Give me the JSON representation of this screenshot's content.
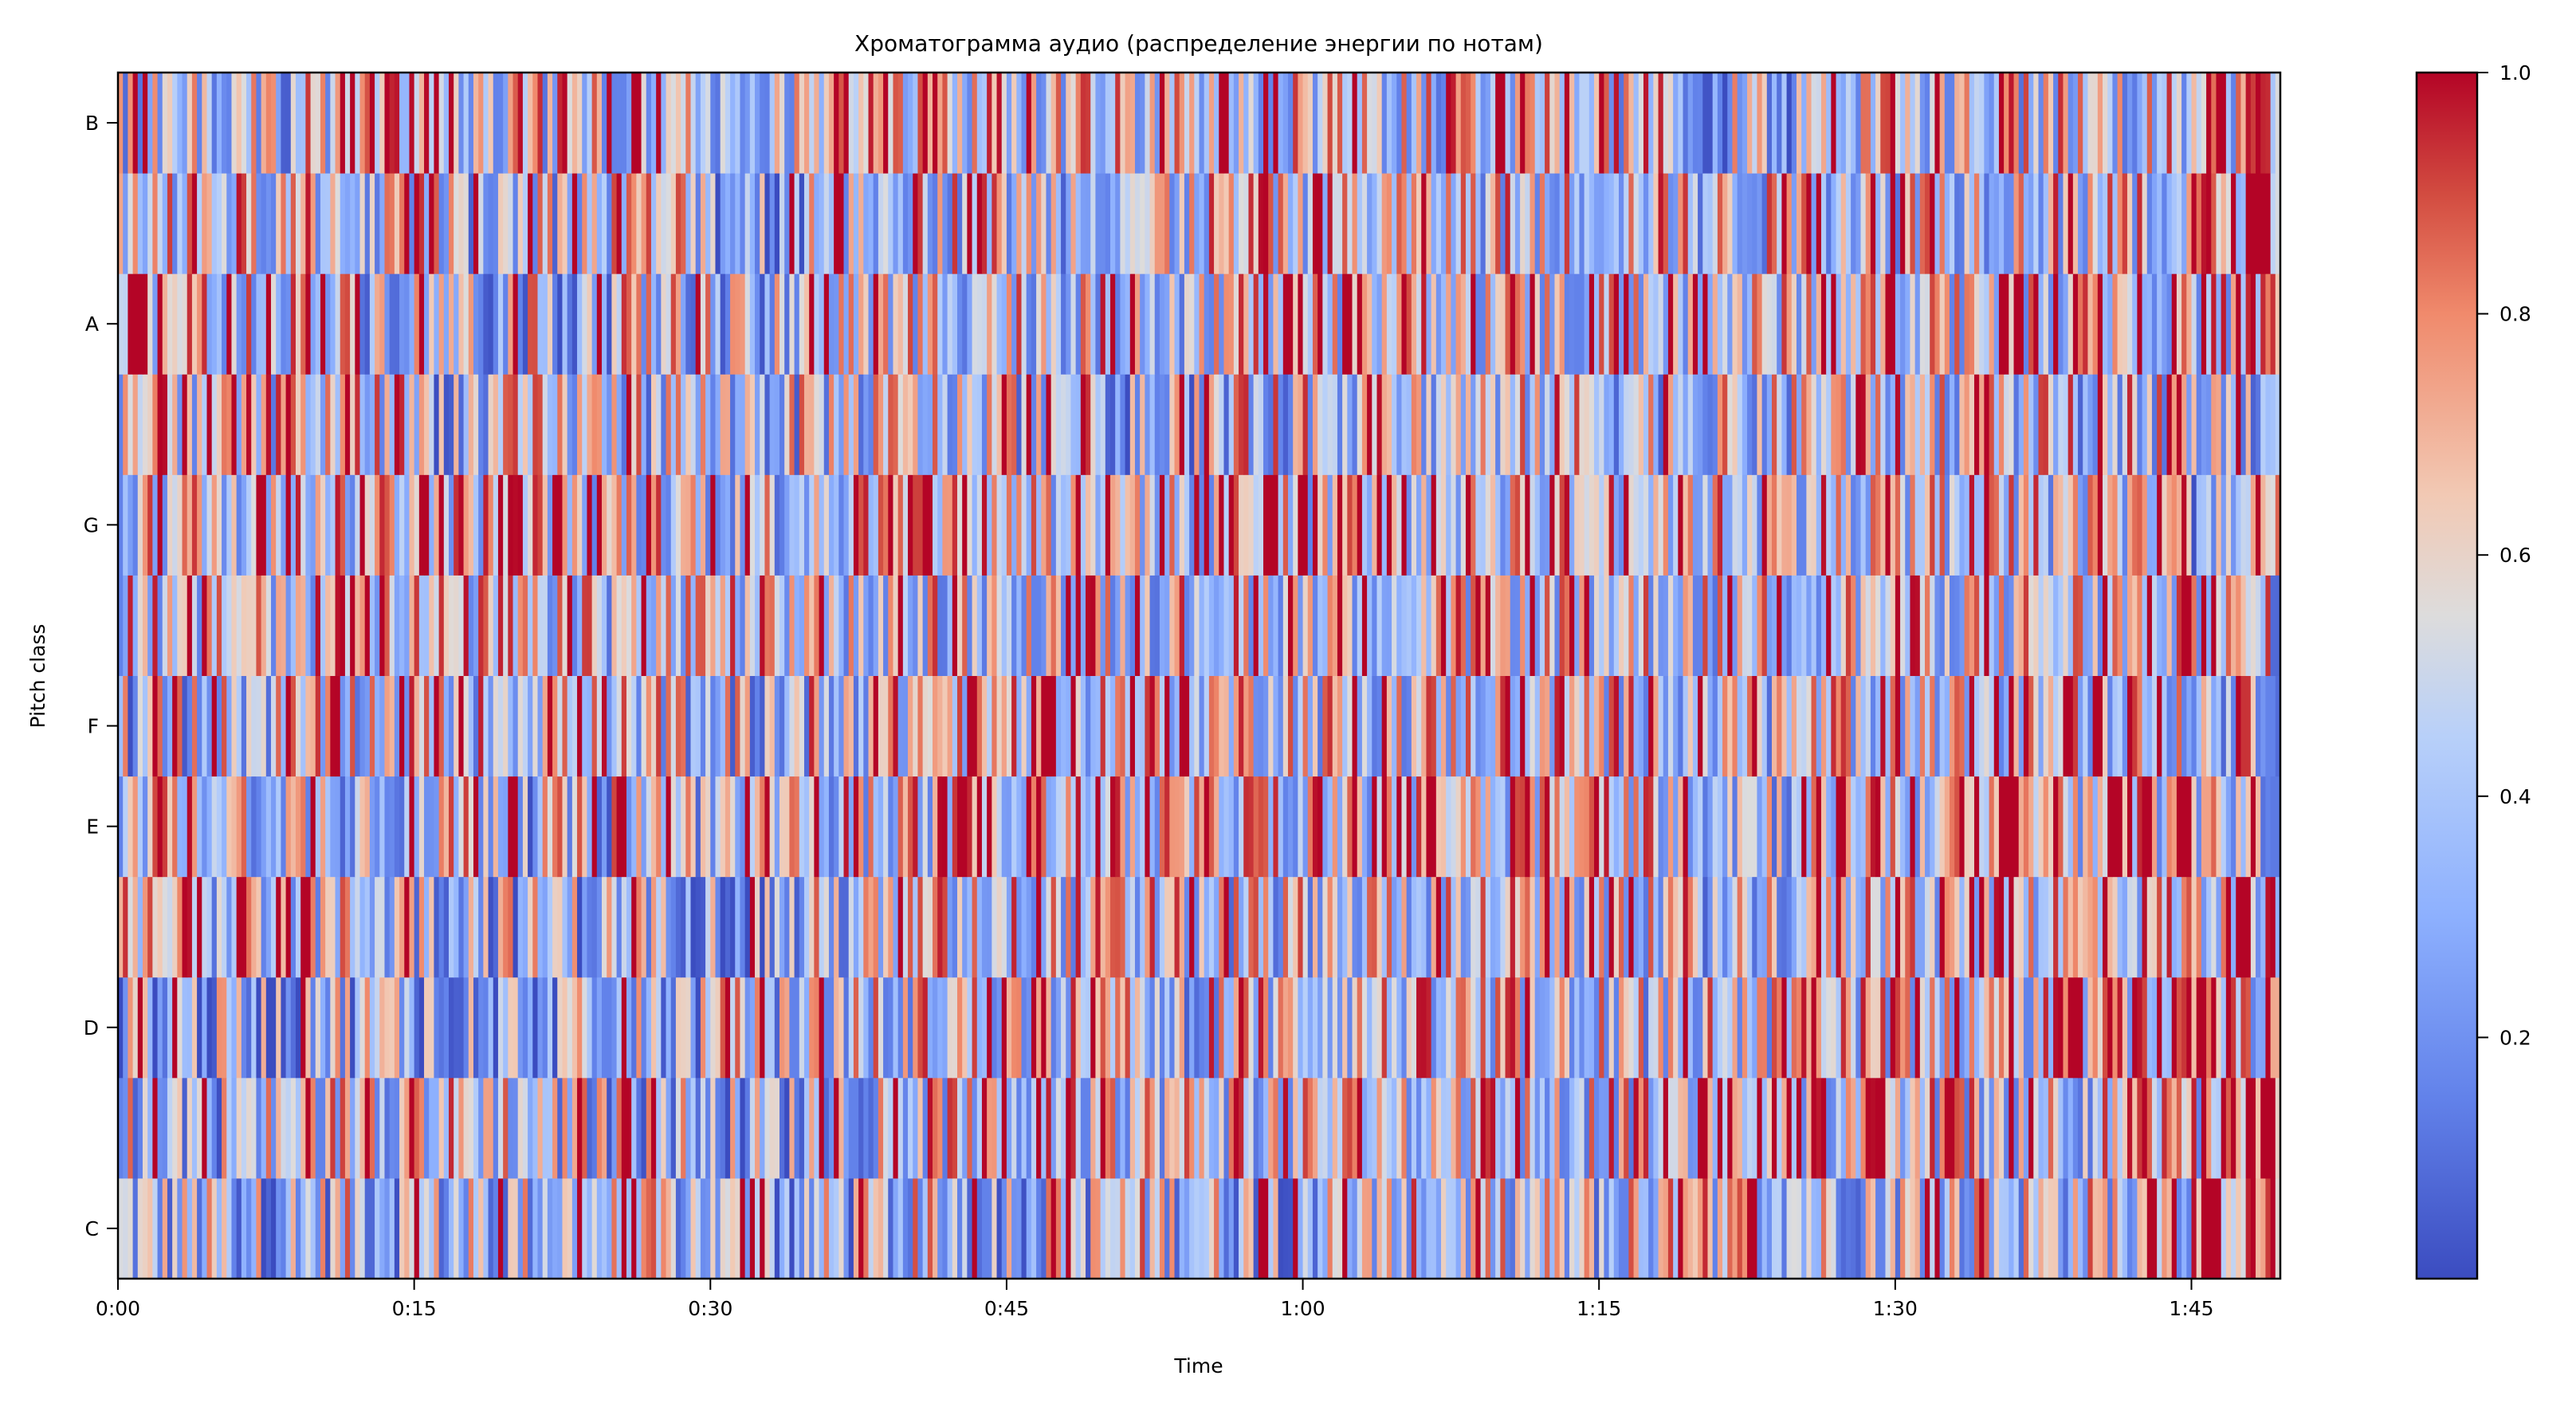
{
  "chart_data": {
    "type": "heatmap",
    "title": "Хроматограмма аудио (распределение энергии по нотам)",
    "xlabel": "Time",
    "ylabel": "Pitch class",
    "xlim_seconds": [
      0,
      109.5
    ],
    "x_ticks": [
      {
        "value": 0,
        "label": "0:00"
      },
      {
        "value": 15,
        "label": "0:15"
      },
      {
        "value": 30,
        "label": "0:30"
      },
      {
        "value": 45,
        "label": "0:45"
      },
      {
        "value": 60,
        "label": "1:00"
      },
      {
        "value": 75,
        "label": "1:15"
      },
      {
        "value": 90,
        "label": "1:30"
      },
      {
        "value": 105,
        "label": "1:45"
      }
    ],
    "rows": [
      "C",
      "C#",
      "D",
      "D#",
      "E",
      "F",
      "F#",
      "G",
      "G#",
      "A",
      "A#",
      "B"
    ],
    "y_tick_labels": {
      "C": "C",
      "D": "D",
      "E": "E",
      "F": "F",
      "G": "G",
      "A": "A",
      "B": "B"
    },
    "colormap": "coolwarm",
    "colors": {
      "low": "#3b4cc0",
      "mid": "#dddddd",
      "high": "#b40426"
    },
    "colorbar": {
      "range": [
        0,
        1
      ],
      "ticks": [
        "0.2",
        "0.4",
        "0.6",
        "0.8",
        "1.0"
      ],
      "tick_values": [
        0.2,
        0.4,
        0.6,
        0.8,
        1.0
      ]
    },
    "segment_seconds": 5,
    "segment_mean_values": {
      "C": [
        0.4,
        0.4,
        0.45,
        0.4,
        0.45,
        0.45,
        0.35,
        0.4,
        0.45,
        0.45,
        0.5,
        0.45,
        0.45,
        0.5,
        0.45,
        0.5,
        0.55,
        0.5,
        0.5,
        0.5,
        0.55,
        0.85
      ],
      "C#": [
        0.45,
        0.45,
        0.55,
        0.55,
        0.45,
        0.45,
        0.35,
        0.5,
        0.55,
        0.55,
        0.55,
        0.55,
        0.55,
        0.55,
        0.55,
        0.55,
        0.75,
        0.6,
        0.55,
        0.55,
        0.55,
        0.75
      ],
      "D": [
        0.35,
        0.35,
        0.45,
        0.4,
        0.35,
        0.4,
        0.45,
        0.5,
        0.55,
        0.55,
        0.5,
        0.55,
        0.55,
        0.55,
        0.55,
        0.5,
        0.5,
        0.6,
        0.6,
        0.65,
        0.65,
        0.6
      ],
      "D#": [
        0.55,
        0.65,
        0.5,
        0.45,
        0.4,
        0.45,
        0.35,
        0.45,
        0.55,
        0.55,
        0.55,
        0.5,
        0.55,
        0.55,
        0.55,
        0.55,
        0.5,
        0.6,
        0.6,
        0.6,
        0.6,
        0.6
      ],
      "E": [
        0.6,
        0.55,
        0.5,
        0.55,
        0.45,
        0.5,
        0.45,
        0.55,
        0.65,
        0.65,
        0.55,
        0.6,
        0.65,
        0.65,
        0.6,
        0.6,
        0.5,
        0.65,
        0.6,
        0.7,
        0.75,
        0.5
      ],
      "F": [
        0.45,
        0.5,
        0.55,
        0.55,
        0.6,
        0.5,
        0.45,
        0.55,
        0.65,
        0.7,
        0.6,
        0.6,
        0.55,
        0.55,
        0.6,
        0.55,
        0.5,
        0.55,
        0.6,
        0.6,
        0.6,
        0.5
      ],
      "F#": [
        0.65,
        0.65,
        0.65,
        0.55,
        0.5,
        0.5,
        0.55,
        0.45,
        0.55,
        0.6,
        0.55,
        0.55,
        0.6,
        0.55,
        0.6,
        0.55,
        0.5,
        0.55,
        0.6,
        0.55,
        0.6,
        0.5
      ],
      "G": [
        0.55,
        0.6,
        0.65,
        0.6,
        0.65,
        0.55,
        0.5,
        0.6,
        0.65,
        0.6,
        0.6,
        0.7,
        0.65,
        0.6,
        0.6,
        0.6,
        0.55,
        0.6,
        0.6,
        0.55,
        0.6,
        0.45
      ],
      "G#": [
        0.6,
        0.55,
        0.55,
        0.45,
        0.5,
        0.5,
        0.45,
        0.5,
        0.5,
        0.5,
        0.45,
        0.5,
        0.55,
        0.5,
        0.55,
        0.5,
        0.45,
        0.55,
        0.55,
        0.5,
        0.55,
        0.45
      ],
      "A": [
        0.65,
        0.6,
        0.5,
        0.45,
        0.45,
        0.5,
        0.35,
        0.5,
        0.55,
        0.55,
        0.55,
        0.6,
        0.6,
        0.65,
        0.6,
        0.6,
        0.5,
        0.6,
        0.65,
        0.6,
        0.6,
        0.7
      ],
      "A#": [
        0.55,
        0.55,
        0.5,
        0.5,
        0.5,
        0.55,
        0.35,
        0.65,
        0.55,
        0.5,
        0.55,
        0.55,
        0.55,
        0.55,
        0.55,
        0.55,
        0.5,
        0.55,
        0.55,
        0.55,
        0.5,
        0.75
      ],
      "B": [
        0.5,
        0.5,
        0.6,
        0.6,
        0.55,
        0.6,
        0.4,
        0.65,
        0.6,
        0.55,
        0.6,
        0.6,
        0.6,
        0.55,
        0.6,
        0.55,
        0.4,
        0.55,
        0.55,
        0.55,
        0.5,
        0.8
      ]
    }
  }
}
